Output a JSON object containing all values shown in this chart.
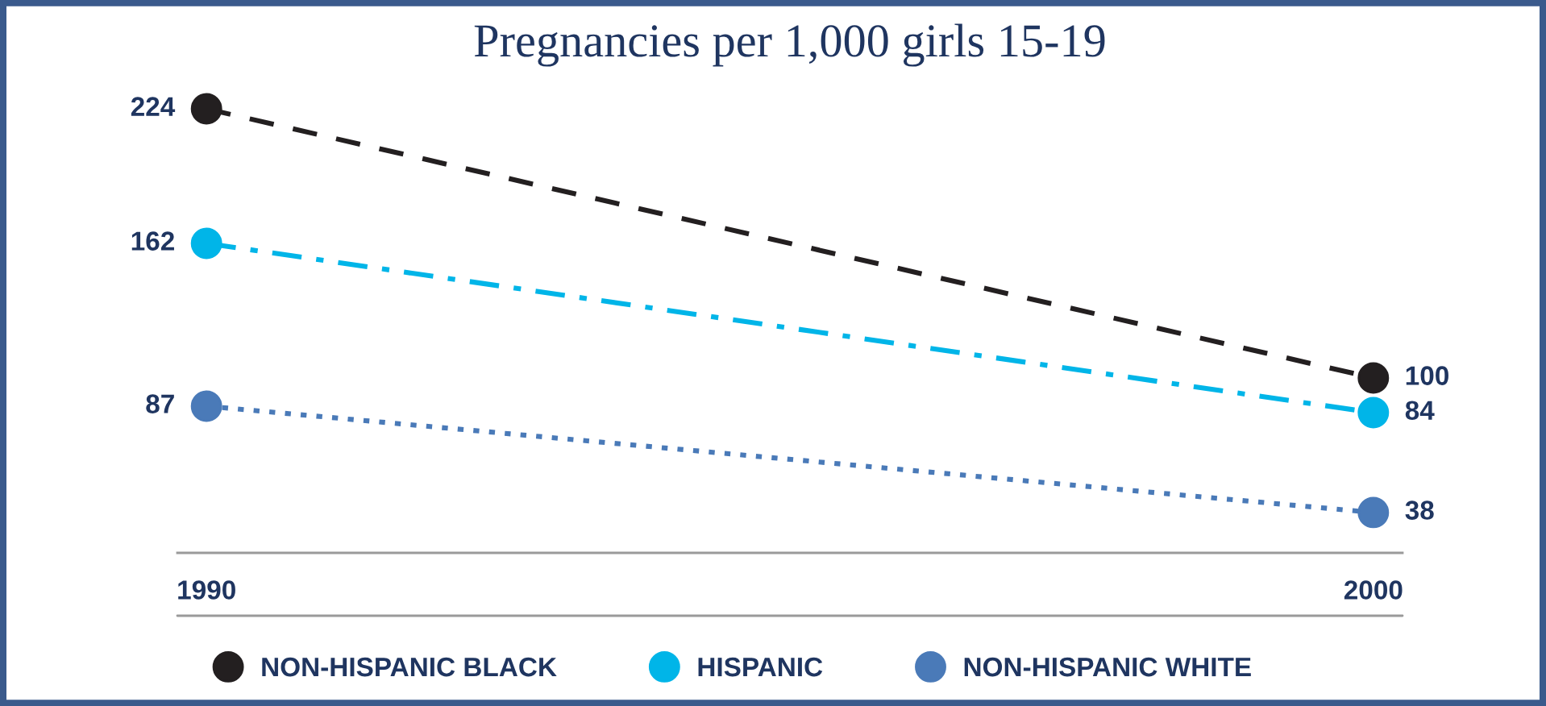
{
  "chart_data": {
    "type": "line",
    "title": "Pregnancies per 1,000 girls 15-19",
    "categories": [
      "1990",
      "2000"
    ],
    "series": [
      {
        "name": "NON-HISPANIC BLACK",
        "color": "#231f20",
        "values": [
          224,
          100
        ],
        "line_style": "dashed"
      },
      {
        "name": "HISPANIC",
        "color": "#00b5e8",
        "values": [
          162,
          84
        ],
        "line_style": "dashdot"
      },
      {
        "name": "NON-HISPANIC WHITE",
        "color": "#4a7ab8",
        "values": [
          87,
          38
        ],
        "line_style": "dotted"
      }
    ],
    "data_labels": true,
    "marker": "circle",
    "legend": "bottom",
    "grid": false,
    "tick_labels": "x"
  }
}
